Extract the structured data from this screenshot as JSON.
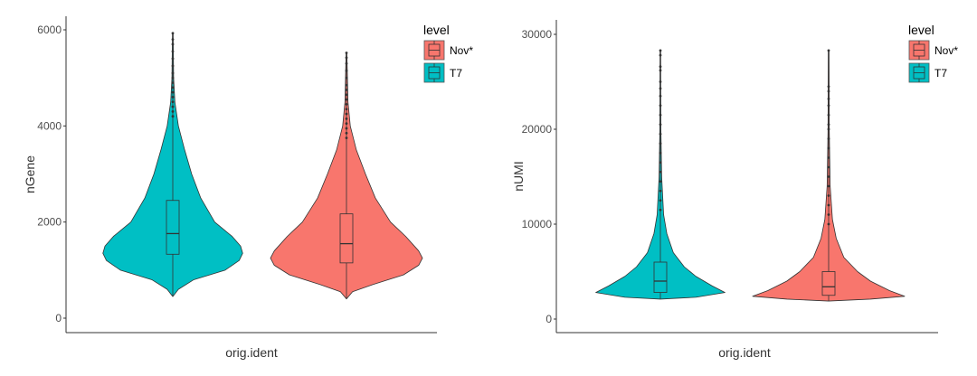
{
  "chart_data": [
    {
      "type": "violin",
      "title": "",
      "xlabel": "orig.ident",
      "ylabel": "nGene",
      "ylim": [
        -300,
        6300
      ],
      "yticks": [
        0,
        2000,
        4000,
        6000
      ],
      "ytick_labels": [
        "0",
        "2000",
        "4000",
        "6000"
      ],
      "legend": {
        "title": "level",
        "placement": "top-right",
        "entries": [
          "Nov*",
          "T7"
        ]
      },
      "groups": [
        {
          "name": "T7",
          "color": "#00BFC4",
          "relative_density": 0.92,
          "box": {
            "min": 450,
            "q1": 1330,
            "median": 1760,
            "q3": 2450,
            "upper_whisker": 4150,
            "max": 5930
          },
          "outliers": [
            4200,
            4300,
            4400,
            4500,
            4600,
            4700,
            4800,
            4900,
            5000,
            5100,
            5250,
            5400,
            5550,
            5700,
            5800,
            5930
          ],
          "profile": [
            [
              450,
              0
            ],
            [
              600,
              0.08
            ],
            [
              800,
              0.3
            ],
            [
              1000,
              0.75
            ],
            [
              1200,
              0.95
            ],
            [
              1350,
              1
            ],
            [
              1500,
              0.97
            ],
            [
              1700,
              0.85
            ],
            [
              2000,
              0.6
            ],
            [
              2500,
              0.4
            ],
            [
              3000,
              0.27
            ],
            [
              3500,
              0.17
            ],
            [
              4000,
              0.08
            ],
            [
              4500,
              0.03
            ],
            [
              5000,
              0.012
            ],
            [
              5930,
              0.005
            ]
          ]
        },
        {
          "name": "Nov*",
          "color": "#F8766D",
          "relative_density": 1.0,
          "box": {
            "min": 400,
            "q1": 1150,
            "median": 1550,
            "q3": 2170,
            "upper_whisker": 3700,
            "max": 5520
          },
          "outliers": [
            3750,
            3850,
            3950,
            4050,
            4150,
            4250,
            4350,
            4450,
            4550,
            4650,
            4750,
            4850,
            5000,
            5150,
            5300,
            5420,
            5520
          ],
          "profile": [
            [
              400,
              0
            ],
            [
              550,
              0.08
            ],
            [
              700,
              0.35
            ],
            [
              900,
              0.75
            ],
            [
              1100,
              0.95
            ],
            [
              1250,
              1
            ],
            [
              1400,
              0.95
            ],
            [
              1700,
              0.78
            ],
            [
              2000,
              0.58
            ],
            [
              2500,
              0.38
            ],
            [
              3000,
              0.25
            ],
            [
              3500,
              0.13
            ],
            [
              4000,
              0.05
            ],
            [
              4500,
              0.02
            ],
            [
              5520,
              0.005
            ]
          ]
        }
      ]
    },
    {
      "type": "violin",
      "title": "",
      "xlabel": "orig.ident",
      "ylabel": "nUMI",
      "ylim": [
        -1500,
        31500
      ],
      "yticks": [
        0,
        10000,
        20000,
        30000
      ],
      "ytick_labels": [
        "0",
        "10000",
        "20000",
        "30000"
      ],
      "legend": {
        "title": "level",
        "placement": "top-right",
        "entries": [
          "Nov*",
          "T7"
        ]
      },
      "groups": [
        {
          "name": "T7",
          "color": "#00BFC4",
          "relative_density": 0.85,
          "box": {
            "min": 2100,
            "q1": 2800,
            "median": 4000,
            "q3": 6000,
            "upper_whisker": 11000,
            "max": 28300
          },
          "outliers": [
            11500,
            12500,
            13500,
            14500,
            15500,
            16500,
            17500,
            18500,
            19500,
            20500,
            21500,
            22500,
            23500,
            24300,
            25000,
            26200,
            26600,
            27800,
            28300
          ],
          "profile": [
            [
              2100,
              0
            ],
            [
              2300,
              0.55
            ],
            [
              2800,
              1
            ],
            [
              3500,
              0.8
            ],
            [
              4500,
              0.55
            ],
            [
              5500,
              0.37
            ],
            [
              7000,
              0.2
            ],
            [
              9000,
              0.1
            ],
            [
              11000,
              0.05
            ],
            [
              15000,
              0.02
            ],
            [
              20000,
              0.008
            ],
            [
              28300,
              0.005
            ]
          ]
        },
        {
          "name": "Nov*",
          "color": "#F8766D",
          "relative_density": 1.0,
          "box": {
            "min": 1900,
            "q1": 2500,
            "median": 3400,
            "q3": 5000,
            "upper_whisker": 9500,
            "max": 28300
          },
          "outliers": [
            10000,
            11000,
            12000,
            13000,
            14000,
            15000,
            16000,
            17000,
            18000,
            19000,
            20000,
            20500,
            21500,
            22500,
            23200,
            24000,
            24500,
            28300
          ],
          "profile": [
            [
              1900,
              0
            ],
            [
              2100,
              0.55
            ],
            [
              2400,
              1
            ],
            [
              3000,
              0.8
            ],
            [
              4000,
              0.55
            ],
            [
              5000,
              0.38
            ],
            [
              6500,
              0.2
            ],
            [
              8500,
              0.1
            ],
            [
              10500,
              0.05
            ],
            [
              14000,
              0.02
            ],
            [
              20000,
              0.008
            ],
            [
              28300,
              0.005
            ]
          ]
        }
      ]
    }
  ]
}
